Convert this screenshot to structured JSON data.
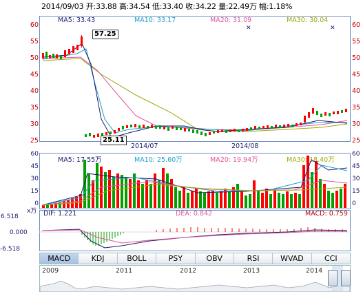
{
  "header": {
    "date": "2014/09/03",
    "open_label": "开:",
    "open": "33.88",
    "high_label": "高:",
    "high": "34.54",
    "low_label": "低:",
    "low": "33.40",
    "close_label": "收:",
    "close": "34.22",
    "volume_label": "量:",
    "volume": "22.49万",
    "change_label": "幅:",
    "change": "1.18%"
  },
  "price_ma": {
    "ma5": "MA5: 33.43",
    "ma10": "MA10: 33.17",
    "ma20": "MA20: 31.09",
    "ma30": "MA30: 30.04"
  },
  "price_axis_left": [
    "60",
    "55",
    "50",
    "45",
    "40",
    "35",
    "30",
    "25"
  ],
  "price_axis_right": [
    "60",
    "55",
    "50",
    "45",
    "40",
    "35",
    "30",
    "25"
  ],
  "price_dates": [
    "2014/07",
    "2014/08"
  ],
  "annotations": {
    "high_tag": "57.25",
    "low_tag": "25.11"
  },
  "vol_ma": {
    "ma5": "MA5: 17.55万",
    "ma10": "MA10: 25.60万",
    "ma20": "MA20: 19.94万",
    "ma30": "MA30: 18.40万"
  },
  "vol_axis_left": [
    "60",
    "45",
    "30",
    "15",
    "0"
  ],
  "vol_axis_right": [
    "60",
    "45",
    "30",
    "15",
    "0"
  ],
  "vol_unit": "x万",
  "macd": {
    "dif": "DIF: 1.221",
    "dea": "DEA: 0.842",
    "macd": "MACD: 0.759"
  },
  "macd_axis": [
    "6.518",
    "0.000",
    "-6.518"
  ],
  "tabs": [
    "MACD",
    "KDJ",
    "BOLL",
    "PSY",
    "OBV",
    "RSI",
    "WVAD",
    "CCI"
  ],
  "active_tab": "MACD",
  "nav_years": [
    "2009",
    "2011",
    "2012",
    "2013",
    "2014"
  ],
  "colors": {
    "up": "#ff0000",
    "down": "#00a000",
    "ma5": "#1a1a6e",
    "ma10": "#1fa0c8",
    "ma20": "#e0559a",
    "ma30": "#a0a800"
  },
  "chart_data": {
    "type": "candlestick",
    "ylim": [
      25,
      60
    ],
    "volume_ylim": [
      0,
      60
    ],
    "macd_ylim": [
      -6.518,
      6.518
    ]
  }
}
